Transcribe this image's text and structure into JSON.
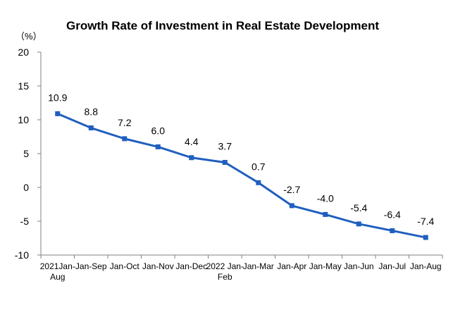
{
  "chart_data": {
    "type": "line",
    "title": "Growth Rate of Investment in Real Estate Development",
    "unit_label": "（%）",
    "xlabel": "",
    "ylabel": "",
    "ylim": [
      -10,
      20
    ],
    "yticks": [
      -10,
      -5,
      0,
      5,
      10,
      15,
      20
    ],
    "grid": false,
    "legend": "none",
    "categories": [
      [
        "2021Jan-",
        "Aug"
      ],
      [
        "Jan-Sep"
      ],
      [
        "Jan-Oct"
      ],
      [
        "Jan-Nov"
      ],
      [
        "Jan-Dec"
      ],
      [
        "2022 Jan-",
        "Feb"
      ],
      [
        "Jan-Mar"
      ],
      [
        "Jan-Apr"
      ],
      [
        "Jan-May"
      ],
      [
        "Jan-Jun"
      ],
      [
        "Jan-Jul"
      ],
      [
        "Jan-Aug"
      ]
    ],
    "series": [
      {
        "color": "#1f5fbf",
        "values": [
          10.9,
          8.8,
          7.2,
          6.0,
          4.4,
          3.7,
          0.7,
          -2.7,
          -4.0,
          -5.4,
          -6.4,
          -7.4
        ],
        "labels": [
          "10.9",
          "8.8",
          "7.2",
          "6.0",
          "4.4",
          "3.7",
          "0.7",
          "-2.7",
          "-4.0",
          "-5.4",
          "-6.4",
          "-7.4"
        ]
      }
    ]
  }
}
